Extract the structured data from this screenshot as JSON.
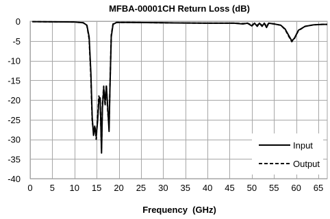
{
  "chart_data": {
    "type": "line",
    "title": "MFBA-00001CH Return Loss (dB)",
    "xlabel": "Frequency  (GHz)",
    "ylabel": "",
    "xlim": [
      0,
      67
    ],
    "ylim": [
      -40,
      0
    ],
    "xticks": [
      0,
      5,
      10,
      15,
      20,
      25,
      30,
      35,
      40,
      45,
      50,
      55,
      60,
      65
    ],
    "yticks": [
      0,
      -5,
      -10,
      -15,
      -20,
      -25,
      -30,
      -35,
      -40
    ],
    "grid": true,
    "legend_position": "bottom-right",
    "series": [
      {
        "name": "Input",
        "style": "solid",
        "color": "#000000",
        "points": [
          [
            0.5,
            -0.1
          ],
          [
            5,
            -0.15
          ],
          [
            10,
            -0.2
          ],
          [
            12,
            -0.4
          ],
          [
            12.8,
            -1.0
          ],
          [
            13.3,
            -4.0
          ],
          [
            13.7,
            -13.0
          ],
          [
            14.0,
            -24.5
          ],
          [
            14.3,
            -29.0
          ],
          [
            14.6,
            -27.0
          ],
          [
            14.9,
            -29.2
          ],
          [
            15.2,
            -25.5
          ],
          [
            15.5,
            -20.0
          ],
          [
            15.8,
            -19.5
          ],
          [
            16.1,
            -33.5
          ],
          [
            16.3,
            -22.0
          ],
          [
            16.6,
            -17.0
          ],
          [
            16.9,
            -20.5
          ],
          [
            17.2,
            -16.5
          ],
          [
            17.5,
            -22.0
          ],
          [
            17.8,
            -28.0
          ],
          [
            18.0,
            -17.0
          ],
          [
            18.3,
            -4.0
          ],
          [
            18.7,
            -0.8
          ],
          [
            19.5,
            -0.3
          ],
          [
            22,
            -0.3
          ],
          [
            30,
            -0.4
          ],
          [
            40,
            -0.5
          ],
          [
            46,
            -0.5
          ],
          [
            48,
            -0.7
          ],
          [
            49,
            -0.5
          ],
          [
            50,
            -1.2
          ],
          [
            50.6,
            -0.5
          ],
          [
            51.2,
            -1.3
          ],
          [
            51.7,
            -0.5
          ],
          [
            52.3,
            -1.3
          ],
          [
            52.8,
            -0.5
          ],
          [
            53.3,
            -1.6
          ],
          [
            53.8,
            -0.5
          ],
          [
            55,
            -0.7
          ],
          [
            56.5,
            -1.0
          ],
          [
            57.5,
            -2.0
          ],
          [
            58.5,
            -4.0
          ],
          [
            59.0,
            -5.0
          ],
          [
            59.6,
            -4.3
          ],
          [
            60.5,
            -2.3
          ],
          [
            62,
            -1.3
          ],
          [
            64,
            -0.9
          ],
          [
            66,
            -0.8
          ],
          [
            67,
            -0.8
          ]
        ]
      },
      {
        "name": "Output",
        "style": "dashed",
        "color": "#000000",
        "points": [
          [
            0.5,
            -0.1
          ],
          [
            5,
            -0.15
          ],
          [
            10,
            -0.2
          ],
          [
            12,
            -0.4
          ],
          [
            12.8,
            -1.1
          ],
          [
            13.3,
            -4.5
          ],
          [
            13.7,
            -14.0
          ],
          [
            14.0,
            -25.5
          ],
          [
            14.3,
            -28.0
          ],
          [
            14.6,
            -26.5
          ],
          [
            14.9,
            -30.0
          ],
          [
            15.2,
            -24.5
          ],
          [
            15.5,
            -19.0
          ],
          [
            15.8,
            -20.5
          ],
          [
            16.1,
            -32.5
          ],
          [
            16.3,
            -21.0
          ],
          [
            16.6,
            -16.5
          ],
          [
            16.9,
            -21.5
          ],
          [
            17.2,
            -16.2
          ],
          [
            17.5,
            -23.0
          ],
          [
            17.8,
            -27.0
          ],
          [
            18.0,
            -16.5
          ],
          [
            18.3,
            -3.5
          ],
          [
            18.7,
            -0.7
          ],
          [
            19.5,
            -0.3
          ],
          [
            22,
            -0.3
          ],
          [
            30,
            -0.4
          ],
          [
            40,
            -0.5
          ],
          [
            46,
            -0.5
          ],
          [
            48,
            -0.6
          ],
          [
            49,
            -0.5
          ],
          [
            50,
            -1.0
          ],
          [
            50.6,
            -0.5
          ],
          [
            51.2,
            -1.1
          ],
          [
            51.7,
            -0.5
          ],
          [
            52.3,
            -1.1
          ],
          [
            52.8,
            -0.5
          ],
          [
            53.3,
            -1.3
          ],
          [
            53.8,
            -0.5
          ],
          [
            55,
            -0.7
          ],
          [
            56.5,
            -1.0
          ],
          [
            57.5,
            -2.1
          ],
          [
            58.5,
            -4.2
          ],
          [
            59.0,
            -5.2
          ],
          [
            59.6,
            -4.4
          ],
          [
            60.5,
            -2.4
          ],
          [
            62,
            -1.3
          ],
          [
            64,
            -0.9
          ],
          [
            66,
            -0.8
          ],
          [
            67,
            -0.8
          ]
        ]
      }
    ]
  }
}
